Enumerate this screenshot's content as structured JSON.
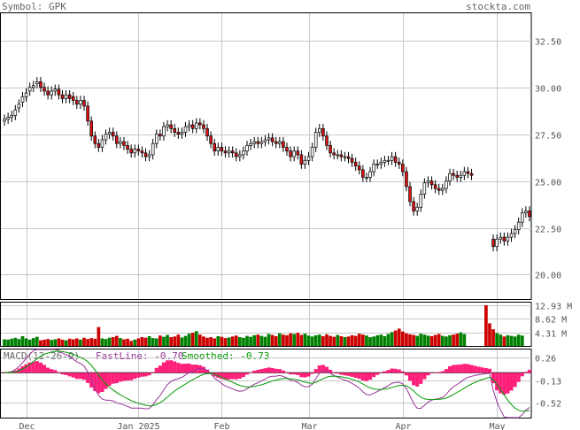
{
  "header": {
    "symbol_label": "Symbol: GPK",
    "site": "stockta.com"
  },
  "colors": {
    "up": "#ffffff",
    "down": "#dd1111",
    "vol_up": "#008000",
    "vol_down": "#cc0000",
    "fast": "#993399",
    "smooth": "#009900",
    "hist": "#ff1f7a",
    "grid": "#c8c8c8"
  },
  "chart_data": [
    {
      "type": "candlestick",
      "panel": "price",
      "ylim": [
        18.7,
        34.0
      ],
      "yticks": [
        "32.50",
        "30.00",
        "27.50",
        "25.00",
        "22.50",
        "20.00"
      ],
      "ytick_values": [
        32.5,
        30.0,
        27.5,
        25.0,
        22.5,
        20.0
      ],
      "xticks": [
        "Dec",
        "Jan 2025",
        "Feb",
        "Mar",
        "Apr",
        "May"
      ],
      "xtick_index": [
        6,
        37,
        60,
        84,
        110,
        136
      ],
      "closes": [
        28.3,
        28.4,
        28.5,
        28.8,
        29.1,
        29.5,
        29.7,
        30.0,
        30.1,
        30.3,
        30.0,
        29.8,
        29.6,
        29.8,
        29.9,
        29.6,
        29.4,
        29.6,
        29.4,
        29.3,
        29.1,
        29.3,
        29.0,
        28.2,
        27.4,
        27.0,
        26.8,
        27.2,
        27.5,
        27.6,
        27.4,
        27.0,
        27.1,
        26.9,
        26.7,
        26.5,
        26.7,
        26.6,
        26.5,
        26.3,
        26.4,
        27.0,
        27.5,
        27.4,
        27.9,
        28.0,
        27.8,
        27.6,
        27.5,
        27.6,
        27.9,
        28.0,
        27.8,
        28.1,
        28.0,
        27.8,
        27.4,
        27.0,
        26.6,
        26.8,
        26.6,
        26.5,
        26.6,
        26.5,
        26.3,
        26.4,
        26.6,
        26.9,
        27.0,
        27.1,
        27.0,
        27.1,
        27.2,
        27.3,
        27.1,
        27.0,
        27.1,
        26.8,
        26.6,
        26.3,
        26.6,
        26.4,
        25.9,
        26.1,
        26.3,
        26.8,
        27.6,
        27.8,
        27.4,
        26.9,
        26.5,
        26.4,
        26.4,
        26.3,
        26.3,
        26.2,
        26.0,
        25.8,
        25.6,
        25.2,
        25.2,
        25.5,
        25.9,
        25.9,
        26.0,
        26.1,
        26.1,
        26.3,
        26.0,
        25.9,
        25.5,
        24.7,
        23.9,
        23.4,
        23.6,
        24.3,
        24.9,
        25.0,
        24.8,
        24.6,
        24.5,
        24.6,
        25.0,
        25.4,
        25.3,
        25.2,
        25.3,
        25.5,
        25.4,
        25.3,
        null,
        null,
        null,
        null,
        null,
        21.5,
        21.9,
        22.0,
        21.8,
        22.0,
        22.2,
        22.4,
        22.8,
        23.3,
        23.4,
        23.1
      ],
      "opens": [
        28.2,
        28.3,
        28.4,
        28.5,
        28.9,
        29.2,
        29.5,
        29.8,
        30.0,
        30.2,
        30.3,
        30.0,
        29.8,
        29.6,
        29.8,
        29.9,
        29.6,
        29.4,
        29.6,
        29.5,
        29.3,
        29.1,
        29.3,
        29.0,
        28.2,
        27.4,
        27.0,
        26.8,
        27.2,
        27.5,
        27.6,
        27.4,
        27.0,
        27.1,
        26.9,
        26.7,
        26.5,
        26.7,
        26.6,
        26.5,
        26.3,
        26.4,
        27.0,
        27.5,
        27.4,
        27.9,
        28.0,
        27.8,
        27.6,
        27.5,
        27.6,
        27.9,
        28.0,
        27.8,
        28.1,
        28.0,
        27.8,
        27.4,
        27.0,
        26.6,
        26.8,
        26.6,
        26.5,
        26.6,
        26.5,
        26.3,
        26.4,
        26.6,
        26.9,
        27.0,
        27.1,
        27.0,
        27.1,
        27.2,
        27.3,
        27.1,
        27.0,
        27.1,
        26.8,
        26.6,
        26.3,
        26.6,
        26.4,
        25.9,
        26.1,
        26.3,
        26.8,
        27.6,
        27.8,
        27.4,
        26.9,
        26.5,
        26.4,
        26.4,
        26.3,
        26.3,
        26.2,
        26.0,
        25.8,
        25.6,
        25.2,
        25.2,
        25.5,
        25.9,
        25.9,
        26.0,
        26.1,
        26.1,
        26.3,
        26.0,
        25.9,
        25.5,
        24.7,
        23.9,
        23.4,
        23.6,
        24.3,
        24.9,
        25.0,
        24.8,
        24.6,
        24.5,
        24.6,
        25.0,
        25.4,
        25.3,
        25.2,
        25.3,
        25.5,
        25.4,
        null,
        null,
        null,
        null,
        null,
        21.9,
        21.5,
        21.9,
        22.0,
        21.8,
        22.0,
        22.2,
        22.4,
        22.8,
        23.3,
        23.4
      ]
    },
    {
      "type": "bar",
      "panel": "volume",
      "yticks": [
        "12.93 M",
        "8.62 M",
        "4.31 M"
      ],
      "ytick_values": [
        12.93,
        8.62,
        4.31
      ],
      "ylim": [
        0,
        13.5
      ],
      "values": [
        2.1,
        2.0,
        2.3,
        2.6,
        2.2,
        3.1,
        2.4,
        2.0,
        2.5,
        2.9,
        1.8,
        2.0,
        2.2,
        1.9,
        2.1,
        2.4,
        2.0,
        1.8,
        2.3,
        2.1,
        2.4,
        2.0,
        2.6,
        2.2,
        2.5,
        2.3,
        6.0,
        2.4,
        2.2,
        2.6,
        2.8,
        3.2,
        2.5,
        2.1,
        2.3,
        1.6,
        2.0,
        2.4,
        2.8,
        2.6,
        3.1,
        2.5,
        2.4,
        3.3,
        2.9,
        3.5,
        2.8,
        3.0,
        3.6,
        2.7,
        3.2,
        3.9,
        4.2,
        4.7,
        3.6,
        3.0,
        2.6,
        2.8,
        2.4,
        3.1,
        2.9,
        2.5,
        2.7,
        3.0,
        3.3,
        2.8,
        2.6,
        3.2,
        2.9,
        3.4,
        3.6,
        3.2,
        2.9,
        3.8,
        3.5,
        3.1,
        4.0,
        3.6,
        3.4,
        4.0,
        3.8,
        4.2,
        3.5,
        3.9,
        3.3,
        3.0,
        3.4,
        3.6,
        3.1,
        3.7,
        3.2,
        2.9,
        3.5,
        3.1,
        2.8,
        3.0,
        3.4,
        3.2,
        3.9,
        3.6,
        3.3,
        2.8,
        3.0,
        3.4,
        3.6,
        3.1,
        3.8,
        4.4,
        4.9,
        5.5,
        4.6,
        4.0,
        3.7,
        3.5,
        3.2,
        3.9,
        3.6,
        3.3,
        3.1,
        3.5,
        3.8,
        3.2,
        3.0,
        3.4,
        3.6,
        3.9,
        4.3,
        3.8,
        0,
        0,
        0,
        0,
        0,
        12.93,
        7.2,
        5.3,
        4.1,
        3.6,
        3.0,
        3.4,
        3.2,
        3.0,
        3.6,
        3.3
      ]
    },
    {
      "type": "line",
      "panel": "macd",
      "title": "MACD(12-26-9)",
      "fast_label": "FastLine: -0.70",
      "smooth_label": "Smoothed: -0.73",
      "yticks": [
        "0.26",
        "-0.13",
        "-0.52"
      ],
      "ytick_values": [
        0.26,
        -0.13,
        -0.52
      ],
      "ylim": [
        -0.78,
        0.42
      ]
    }
  ]
}
